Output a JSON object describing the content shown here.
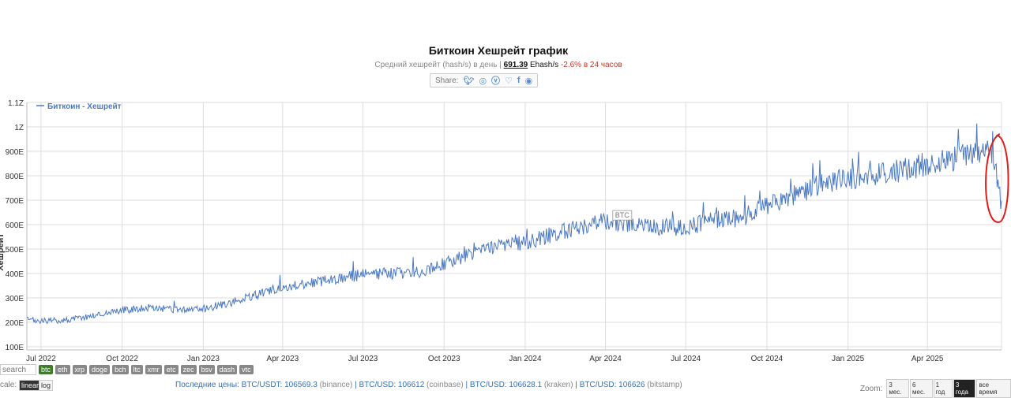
{
  "header": {
    "title": "Биткоин Хешрейт график",
    "subtitle_prefix": "Средний хешрейт (hash/s) в день |",
    "current_value": "691.39",
    "unit": "Ehash/s",
    "change": "-2.6% в 24 часов"
  },
  "share": {
    "label": "Share:",
    "icons": [
      "twitter-icon",
      "reddit-icon",
      "vk-icon",
      "like-icon",
      "facebook-icon",
      "weibo-icon"
    ]
  },
  "chart_data": {
    "type": "line",
    "series": [
      {
        "name": "Биткоин - Хешрейт",
        "color": "#4a78c2"
      }
    ],
    "x_start": "2022-06-15",
    "x_end": "2025-06-24",
    "x_ticks": [
      "Jul 2022",
      "Oct 2022",
      "Jan 2023",
      "Apr 2023",
      "Jul 2023",
      "Oct 2023",
      "Jan 2024",
      "Apr 2024",
      "Jul 2024",
      "Oct 2024",
      "Jan 2025",
      "Apr 2025"
    ],
    "y_ticks": [
      "100E",
      "200E",
      "300E",
      "400E",
      "500E",
      "600E",
      "700E",
      "800E",
      "900E",
      "1Z",
      "1.1Z"
    ],
    "ylabel": "Хешрейт",
    "ylim": [
      100,
      1100
    ],
    "trend_points": [
      [
        "2022-06-15",
        210
      ],
      [
        "2022-07-01",
        205
      ],
      [
        "2022-08-01",
        210
      ],
      [
        "2022-09-01",
        230
      ],
      [
        "2022-10-01",
        250
      ],
      [
        "2022-11-01",
        260
      ],
      [
        "2022-12-01",
        250
      ],
      [
        "2023-01-01",
        255
      ],
      [
        "2023-02-01",
        280
      ],
      [
        "2023-03-01",
        310
      ],
      [
        "2023-04-01",
        345
      ],
      [
        "2023-05-01",
        360
      ],
      [
        "2023-06-01",
        380
      ],
      [
        "2023-07-01",
        395
      ],
      [
        "2023-08-01",
        400
      ],
      [
        "2023-09-01",
        405
      ],
      [
        "2023-10-01",
        440
      ],
      [
        "2023-11-01",
        480
      ],
      [
        "2023-12-01",
        515
      ],
      [
        "2024-01-01",
        525
      ],
      [
        "2024-02-01",
        560
      ],
      [
        "2024-03-01",
        590
      ],
      [
        "2024-04-01",
        615
      ],
      [
        "2024-05-01",
        605
      ],
      [
        "2024-06-01",
        590
      ],
      [
        "2024-07-01",
        585
      ],
      [
        "2024-08-01",
        620
      ],
      [
        "2024-09-01",
        625
      ],
      [
        "2024-10-01",
        680
      ],
      [
        "2024-11-01",
        715
      ],
      [
        "2024-12-01",
        770
      ],
      [
        "2025-01-01",
        790
      ],
      [
        "2025-02-01",
        800
      ],
      [
        "2025-03-01",
        820
      ],
      [
        "2025-04-01",
        850
      ],
      [
        "2025-05-01",
        870
      ],
      [
        "2025-06-01",
        890
      ],
      [
        "2025-06-12",
        900
      ],
      [
        "2025-06-18",
        820
      ],
      [
        "2025-06-24",
        680
      ]
    ],
    "annotation": "BTC",
    "annotation_date": "2024-04-20",
    "annotation_value": 635,
    "highlight_ellipse": {
      "start": "2025-06-05",
      "end": "2025-07-02",
      "ymin": 610,
      "ymax": 965,
      "color": "#e21b1b"
    }
  },
  "search": {
    "placeholder": "search"
  },
  "coins": [
    {
      "label": "btc",
      "active": true
    },
    {
      "label": "eth"
    },
    {
      "label": "xrp"
    },
    {
      "label": "doge"
    },
    {
      "label": "bch"
    },
    {
      "label": "ltc"
    },
    {
      "label": "xmr"
    },
    {
      "label": "etc"
    },
    {
      "label": "zec"
    },
    {
      "label": "bsv"
    },
    {
      "label": "dash"
    },
    {
      "label": "vtc"
    }
  ],
  "scale": {
    "label": "cale:",
    "linear": "linear",
    "log": "log"
  },
  "prices": {
    "label": "Последние цены:",
    "items": [
      {
        "pair": "BTC/USDT: 106569.3",
        "ex": "(binance)"
      },
      {
        "pair": "BTC/USD: 106612",
        "ex": "(coinbase)"
      },
      {
        "pair": "BTC/USD: 106628.1",
        "ex": "(kraken)"
      },
      {
        "pair": "BTC/USD: 106626",
        "ex": "(bitstamp)"
      }
    ]
  },
  "zoom": {
    "label": "Zoom:",
    "options": [
      {
        "label": "3 мес."
      },
      {
        "label": "6 мес."
      },
      {
        "label": "1 год"
      },
      {
        "label": "3 года",
        "active": true
      },
      {
        "label": "все время"
      }
    ]
  }
}
